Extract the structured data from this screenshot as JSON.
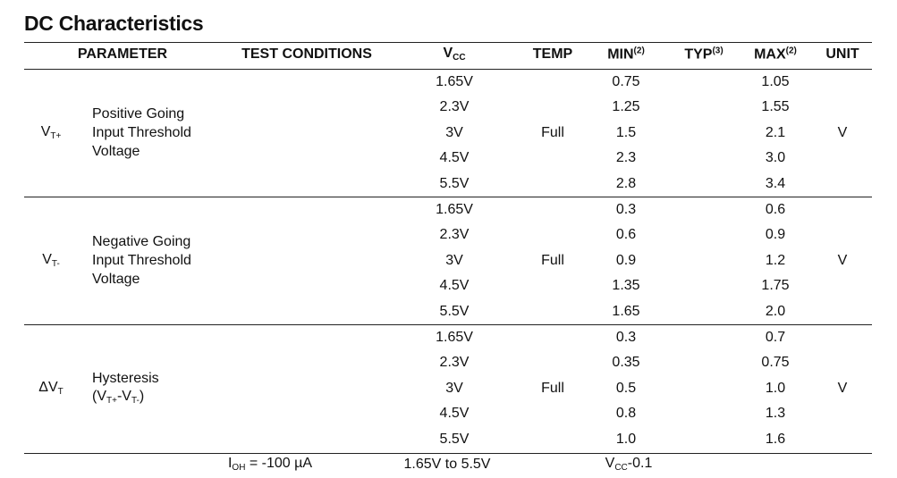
{
  "title": "DC Characteristics",
  "header": [
    [
      {
        "text": "PARAMETER"
      }
    ],
    [
      {
        "text": "TEST CONDITIONS"
      }
    ],
    [
      {
        "text": "V",
        "sub": "CC"
      }
    ],
    [
      {
        "text": "TEMP"
      }
    ],
    [
      {
        "text": "MIN",
        "sup": "(2)"
      }
    ],
    [
      {
        "text": "TYP",
        "sup": "(3)"
      }
    ],
    [
      {
        "text": "MAX",
        "sup": "(2)"
      }
    ],
    [
      {
        "text": "UNIT"
      }
    ]
  ],
  "groups": [
    {
      "symbol": [
        {
          "text": "V",
          "sub": "T+"
        }
      ],
      "description": [
        [
          {
            "text": "Positive Going"
          }
        ],
        [
          {
            "text": "Input Threshold"
          }
        ],
        [
          {
            "text": "Voltage"
          }
        ]
      ],
      "temp": "Full",
      "unit": "V",
      "rows": [
        {
          "vcc": "1.65V",
          "min": "0.75",
          "max": "1.05"
        },
        {
          "vcc": "2.3V",
          "min": "1.25",
          "max": "1.55"
        },
        {
          "vcc": "3V",
          "min": "1.5",
          "max": "2.1"
        },
        {
          "vcc": "4.5V",
          "min": "2.3",
          "max": "3.0"
        },
        {
          "vcc": "5.5V",
          "min": "2.8",
          "max": "3.4"
        }
      ]
    },
    {
      "symbol": [
        {
          "text": "V",
          "sub": "T-"
        }
      ],
      "description": [
        [
          {
            "text": "Negative Going"
          }
        ],
        [
          {
            "text": "Input Threshold"
          }
        ],
        [
          {
            "text": "Voltage"
          }
        ]
      ],
      "temp": "Full",
      "unit": "V",
      "rows": [
        {
          "vcc": "1.65V",
          "min": "0.3",
          "max": "0.6"
        },
        {
          "vcc": "2.3V",
          "min": "0.6",
          "max": "0.9"
        },
        {
          "vcc": "3V",
          "min": "0.9",
          "max": "1.2"
        },
        {
          "vcc": "4.5V",
          "min": "1.35",
          "max": "1.75"
        },
        {
          "vcc": "5.5V",
          "min": "1.65",
          "max": "2.0"
        }
      ]
    },
    {
      "symbol": [
        {
          "text": "ΔV",
          "sub": "T"
        }
      ],
      "description": [
        [
          {
            "text": "Hysteresis"
          }
        ],
        [
          {
            "text": "(V",
            "sub": "T+"
          },
          {
            "text": "-V",
            "sub": "T-"
          },
          {
            "text": ")"
          }
        ]
      ],
      "temp": "Full",
      "unit": "V",
      "rows": [
        {
          "vcc": "1.65V",
          "min": "0.3",
          "max": "0.7"
        },
        {
          "vcc": "2.3V",
          "min": "0.35",
          "max": "0.75"
        },
        {
          "vcc": "3V",
          "min": "0.5",
          "max": "1.0"
        },
        {
          "vcc": "4.5V",
          "min": "0.8",
          "max": "1.3"
        },
        {
          "vcc": "5.5V",
          "min": "1.0",
          "max": "1.6"
        }
      ]
    }
  ],
  "last_row": {
    "test_conditions": [
      {
        "text": "I",
        "sub": "OH"
      },
      {
        "text": " = -100 µA"
      }
    ],
    "vcc": "1.65V to 5.5V",
    "min": [
      {
        "text": "V",
        "sub": "CC"
      },
      {
        "text": "-0.1"
      }
    ]
  }
}
